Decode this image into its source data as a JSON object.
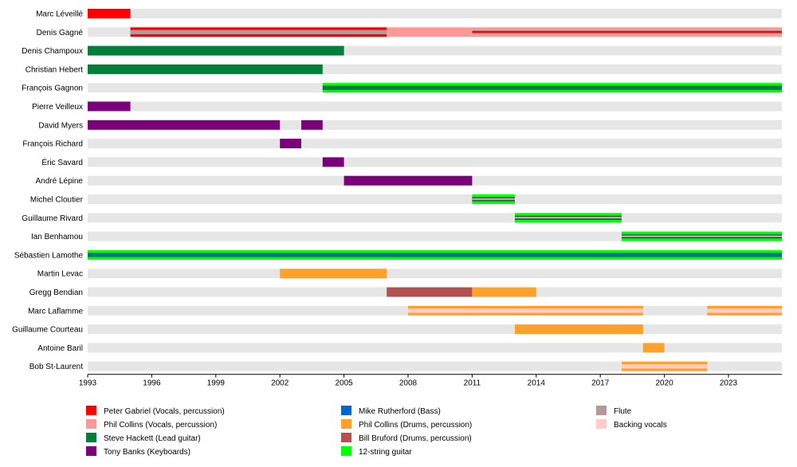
{
  "chart_data": {
    "type": "timeline",
    "x_range": [
      1993,
      2025.5
    ],
    "ticks": [
      "1993",
      "1996",
      "1999",
      "2002",
      "2005",
      "2008",
      "2011",
      "2014",
      "2017",
      "2020",
      "2023"
    ],
    "roles": [
      {
        "key": "pg",
        "label": "Peter Gabriel (Vocals, percussion)",
        "color": "#ff0000"
      },
      {
        "key": "pcv",
        "label": "Phil Collins (Vocals, percussion)",
        "color": "#ff9999"
      },
      {
        "key": "sh",
        "label": "Steve Hackett (Lead guitar)",
        "color": "#007f3a"
      },
      {
        "key": "tb",
        "label": "Tony Banks (Keyboards)",
        "color": "#7a007a"
      },
      {
        "key": "mr",
        "label": "Mike Rutherford (Bass)",
        "color": "#0066cc"
      },
      {
        "key": "pcd",
        "label": "Phil Collins (Drums, percussion)",
        "color": "#ffa12b"
      },
      {
        "key": "bb",
        "label": "Bill Bruford (Drums, percussion)",
        "color": "#b35050"
      },
      {
        "key": "g12",
        "label": "12-string guitar",
        "color": "#00ff00"
      },
      {
        "key": "fl",
        "label": "Flute",
        "color": "#b39999"
      },
      {
        "key": "bv",
        "label": "Backing vocals",
        "color": "#ffcccc"
      }
    ],
    "members": [
      {
        "name": "Marc Léveillé",
        "bars": [
          {
            "role": "pg",
            "start": 1993,
            "end": 1995
          }
        ]
      },
      {
        "name": "Denis Gagné",
        "bars": [
          {
            "role": "pg",
            "start": 1995,
            "end": 2007,
            "extra": [
              "fl"
            ]
          },
          {
            "role": "pcv",
            "start": 2007,
            "end": 2011
          },
          {
            "role": "pcv",
            "start": 2011,
            "end": 2025.5,
            "extra": [
              "fl",
              "pg"
            ]
          }
        ]
      },
      {
        "name": "Denis Champoux",
        "bars": [
          {
            "role": "sh",
            "start": 1993,
            "end": 2005
          }
        ]
      },
      {
        "name": "Christian Hebert",
        "bars": [
          {
            "role": "sh",
            "start": 1993,
            "end": 2004
          }
        ]
      },
      {
        "name": "François Gagnon",
        "bars": [
          {
            "role": "g12",
            "start": 2004,
            "end": 2025.5,
            "extra": [
              "sh"
            ]
          }
        ]
      },
      {
        "name": "Pierre Veilleux",
        "bars": [
          {
            "role": "tb",
            "start": 1993,
            "end": 1995
          }
        ]
      },
      {
        "name": "David Myers",
        "bars": [
          {
            "role": "tb",
            "start": 1993,
            "end": 2002
          },
          {
            "role": "tb",
            "start": 2003,
            "end": 2004
          }
        ]
      },
      {
        "name": "François Richard",
        "bars": [
          {
            "role": "tb",
            "start": 2002,
            "end": 2003
          }
        ]
      },
      {
        "name": "Éric Savard",
        "bars": [
          {
            "role": "tb",
            "start": 2004,
            "end": 2005
          }
        ]
      },
      {
        "name": "André Lépine",
        "bars": [
          {
            "role": "tb",
            "start": 2005,
            "end": 2011
          }
        ]
      },
      {
        "name": "Michel Cloutier",
        "bars": [
          {
            "role": "g12",
            "start": 2011,
            "end": 2013,
            "extra": [
              "sh",
              "tb",
              "bv"
            ]
          }
        ]
      },
      {
        "name": "Guillaume Rivard",
        "bars": [
          {
            "role": "g12",
            "start": 2013,
            "end": 2018,
            "extra": [
              "sh",
              "tb",
              "bv"
            ]
          }
        ]
      },
      {
        "name": "Ian Benhamou",
        "bars": [
          {
            "role": "g12",
            "start": 2018,
            "end": 2025.5,
            "extra": [
              "sh",
              "tb",
              "bv"
            ]
          }
        ]
      },
      {
        "name": "Sébastien Lamothe",
        "bars": [
          {
            "role": "g12",
            "start": 1993,
            "end": 2025.5,
            "extra": [
              "sh",
              "mr"
            ]
          }
        ]
      },
      {
        "name": "Martin Levac",
        "bars": [
          {
            "role": "pcd",
            "start": 2002,
            "end": 2007
          }
        ]
      },
      {
        "name": "Gregg Bendian",
        "bars": [
          {
            "role": "bb",
            "start": 2007,
            "end": 2011
          },
          {
            "role": "pcd",
            "start": 2011,
            "end": 2014
          }
        ]
      },
      {
        "name": "Marc Laflamme",
        "bars": [
          {
            "role": "pcd",
            "start": 2008,
            "end": 2019,
            "extra": [
              "bv"
            ]
          },
          {
            "role": "pcd",
            "start": 2022,
            "end": 2025.5,
            "extra": [
              "bv"
            ]
          }
        ]
      },
      {
        "name": "Guillaume Courteau",
        "bars": [
          {
            "role": "pcd",
            "start": 2013,
            "end": 2019
          }
        ]
      },
      {
        "name": "Antoine Baril",
        "bars": [
          {
            "role": "pcd",
            "start": 2019,
            "end": 2020
          }
        ]
      },
      {
        "name": "Bob St-Laurent",
        "bars": [
          {
            "role": "pcd",
            "start": 2018,
            "end": 2022,
            "extra": [
              "bv"
            ]
          }
        ]
      }
    ]
  }
}
